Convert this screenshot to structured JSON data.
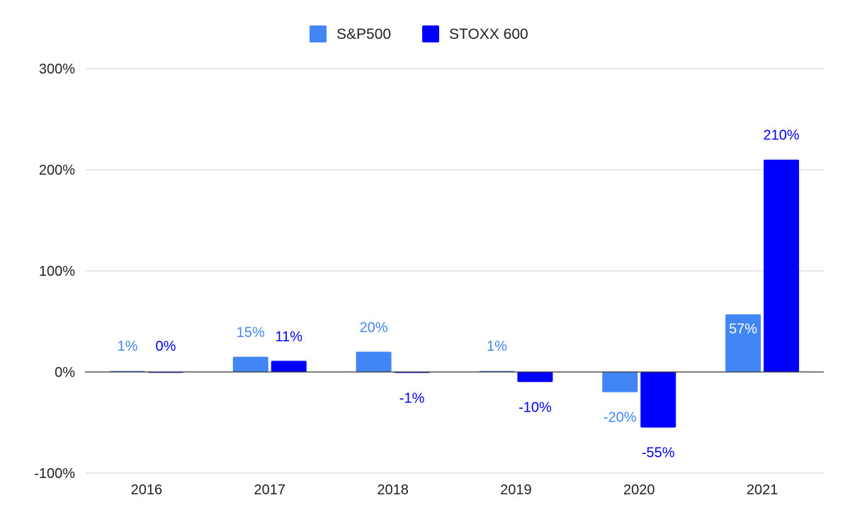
{
  "chart_data": {
    "type": "bar",
    "categories": [
      "2016",
      "2017",
      "2018",
      "2019",
      "2020",
      "2021"
    ],
    "series": [
      {
        "name": "S&P500",
        "color": "#4285f4",
        "values": [
          1,
          15,
          20,
          1,
          -20,
          57
        ],
        "labels": [
          "1%",
          "15%",
          "20%",
          "1%",
          "-20%",
          "57%"
        ]
      },
      {
        "name": "STOXX 600",
        "color": "#0000ff",
        "values": [
          0,
          11,
          -1,
          -10,
          -55,
          210
        ],
        "labels": [
          "0%",
          "11%",
          "-1%",
          "-10%",
          "-55%",
          "210%"
        ]
      }
    ],
    "ylim": [
      -100,
      300
    ],
    "yticks": [
      -100,
      0,
      100,
      200,
      300
    ],
    "ytick_labels": [
      "-100%",
      "0%",
      "100%",
      "200%",
      "300%"
    ],
    "legend_position": "top-center",
    "grid": true
  }
}
